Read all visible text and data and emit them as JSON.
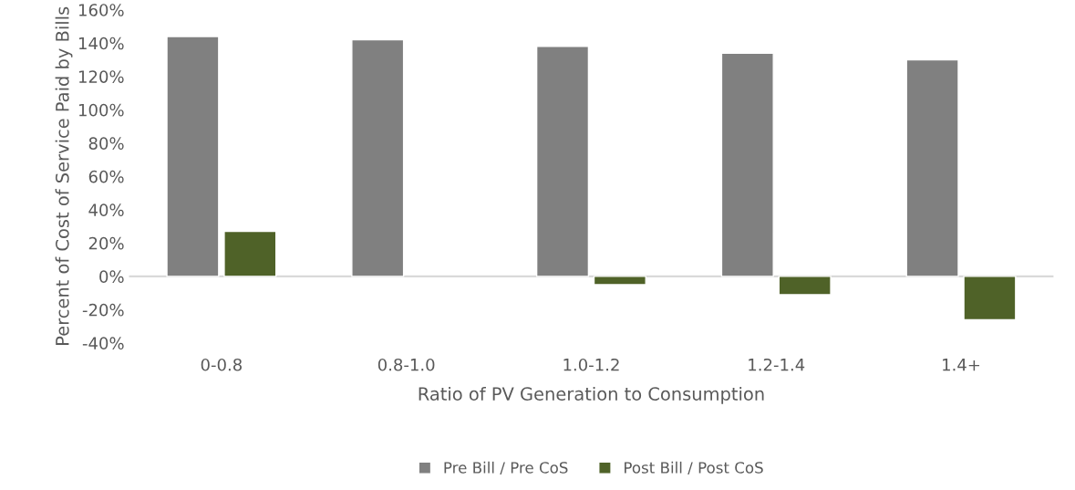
{
  "chart_data": {
    "type": "bar",
    "xlabel": "Ratio of PV Generation to Consumption",
    "ylabel": "Percent of Cost of Service Paid by Bills",
    "categories": [
      "0-0.8",
      "0.8-1.0",
      "1.0-1.2",
      "1.2-1.4",
      "1.4+"
    ],
    "series": [
      {
        "name": "Pre Bill / Pre CoS",
        "color": "#808080",
        "values": [
          144,
          142,
          138,
          134,
          130
        ]
      },
      {
        "name": "Post Bill / Post CoS",
        "color": "#4f6228",
        "values": [
          27,
          null,
          -5,
          -11,
          -26
        ]
      }
    ],
    "ylim": [
      -40,
      160
    ],
    "yticks": [
      {
        "value": -40,
        "label": "-40%"
      },
      {
        "value": -20,
        "label": "-20%"
      },
      {
        "value": 0,
        "label": "0%"
      },
      {
        "value": 20,
        "label": "20%"
      },
      {
        "value": 40,
        "label": "40%"
      },
      {
        "value": 60,
        "label": "60%"
      },
      {
        "value": 80,
        "label": "80%"
      },
      {
        "value": 100,
        "label": "100%"
      },
      {
        "value": 120,
        "label": "120%"
      },
      {
        "value": 140,
        "label": "140%"
      },
      {
        "value": 160,
        "label": "160%"
      }
    ],
    "ref_lines": [
      {
        "axis": "y",
        "value": 0,
        "color": "#d9d9d9"
      }
    ],
    "legend": "bottom",
    "grid": false
  }
}
